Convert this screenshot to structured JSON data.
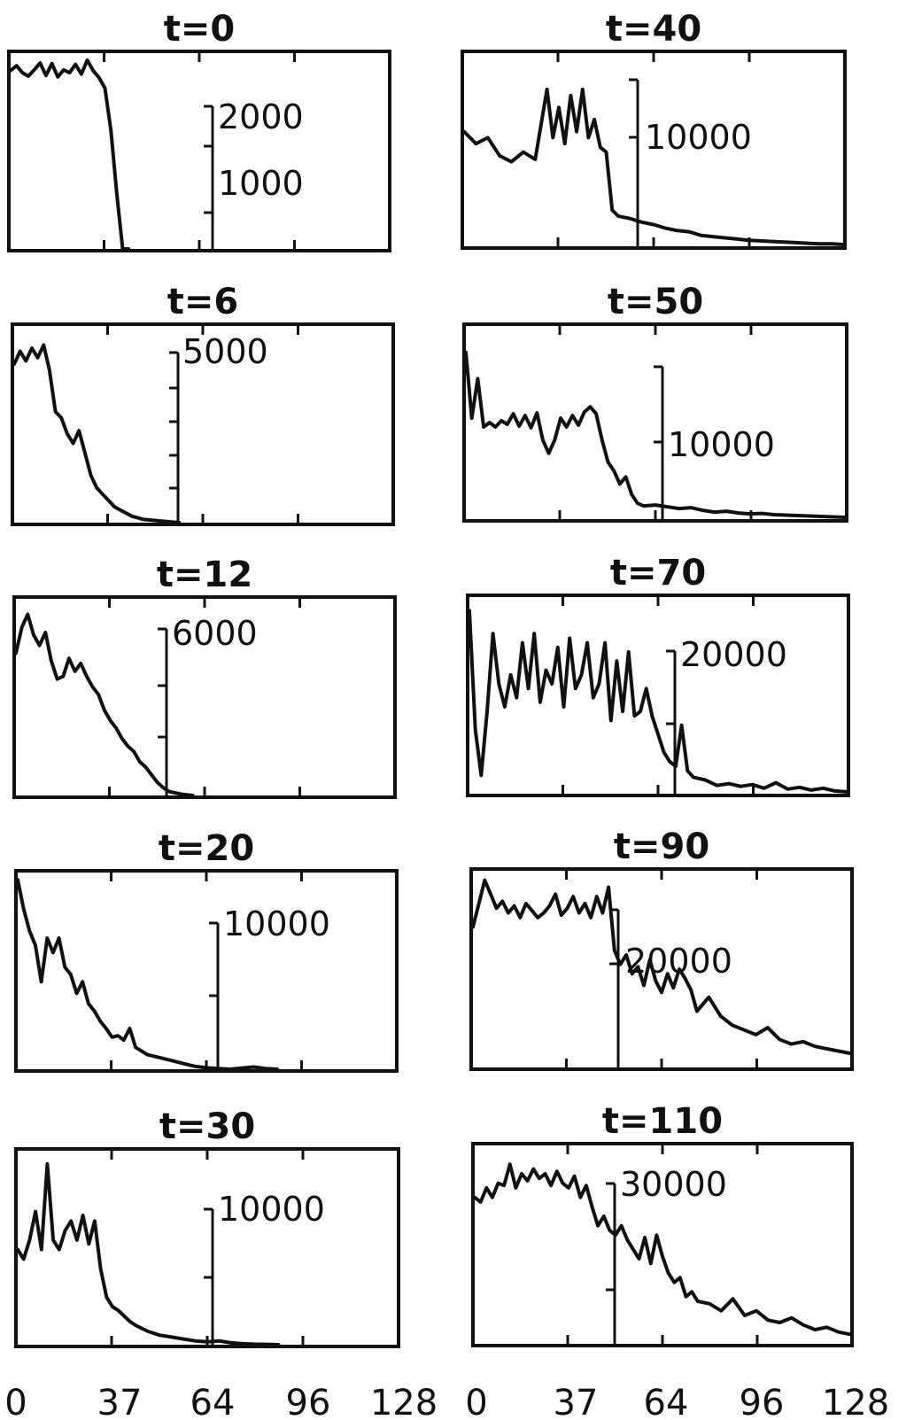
{
  "chart_data": [
    {
      "type": "line",
      "title": "t=0",
      "scale_label": "2000",
      "scale_label_2": "1000",
      "x": [
        0,
        2,
        4,
        6,
        8,
        10,
        12,
        14,
        16,
        18,
        20,
        22,
        24,
        26,
        28,
        30,
        32,
        34,
        36,
        38,
        40
      ],
      "y": [
        2550,
        2620,
        2520,
        2470,
        2560,
        2660,
        2480,
        2650,
        2460,
        2560,
        2520,
        2640,
        2500,
        2700,
        2550,
        2450,
        2300,
        1700,
        800,
        0,
        0
      ]
    },
    {
      "type": "line",
      "title": "t=40",
      "scale_label": "10000",
      "x": [
        0,
        4,
        8,
        12,
        16,
        20,
        24,
        28,
        30,
        32,
        34,
        36,
        38,
        40,
        42,
        44,
        46,
        48,
        50,
        52,
        56,
        60,
        64,
        68,
        72,
        76,
        80,
        84,
        88,
        92,
        96,
        100,
        104,
        108,
        112,
        116,
        120,
        124,
        128
      ],
      "y": [
        9500,
        8500,
        9000,
        7500,
        7000,
        7800,
        7200,
        13000,
        9000,
        11500,
        8500,
        12500,
        9500,
        13000,
        9000,
        10500,
        8200,
        7800,
        3000,
        2500,
        2300,
        2000,
        1800,
        1500,
        1300,
        1200,
        900,
        800,
        700,
        600,
        500,
        450,
        400,
        350,
        300,
        250,
        200,
        200,
        150
      ]
    },
    {
      "type": "line",
      "title": "t=6",
      "scale_label": "5000",
      "x": [
        0,
        2,
        4,
        6,
        8,
        10,
        12,
        14,
        16,
        18,
        20,
        22,
        24,
        26,
        28,
        30,
        32,
        34,
        36,
        40,
        44,
        50,
        56
      ],
      "y": [
        5000,
        5400,
        5100,
        5500,
        5200,
        5600,
        4800,
        3500,
        3300,
        2800,
        2500,
        2900,
        2200,
        1500,
        1100,
        900,
        700,
        500,
        400,
        200,
        100,
        50,
        0
      ]
    },
    {
      "type": "line",
      "title": "t=50",
      "scale_label": "10000",
      "x": [
        0,
        2,
        4,
        6,
        8,
        10,
        12,
        14,
        16,
        18,
        20,
        22,
        24,
        26,
        28,
        30,
        32,
        34,
        36,
        38,
        40,
        42,
        44,
        46,
        48,
        50,
        52,
        54,
        56,
        58,
        60,
        64,
        68,
        72,
        76,
        80,
        84,
        88,
        92,
        96,
        100,
        104,
        108,
        112,
        116,
        120,
        124,
        128
      ],
      "y": [
        19000,
        11500,
        16000,
        10500,
        11000,
        10500,
        11200,
        10800,
        12000,
        10600,
        11800,
        10400,
        12100,
        9000,
        7500,
        9000,
        11500,
        10500,
        11800,
        10700,
        12200,
        12800,
        12000,
        9000,
        6500,
        5500,
        4000,
        4800,
        2800,
        1800,
        1500,
        1600,
        1400,
        1200,
        1300,
        1000,
        800,
        900,
        700,
        600,
        650,
        500,
        450,
        400,
        350,
        300,
        250,
        200
      ]
    },
    {
      "type": "line",
      "title": "t=12",
      "scale_label": "6000",
      "x": [
        0,
        2,
        4,
        6,
        8,
        10,
        12,
        14,
        16,
        18,
        20,
        22,
        24,
        26,
        28,
        30,
        32,
        34,
        36,
        38,
        40,
        42,
        44,
        46,
        48,
        50,
        52,
        56,
        60
      ],
      "y": [
        5500,
        6500,
        7000,
        6200,
        5800,
        6300,
        5200,
        4500,
        4600,
        5300,
        4800,
        5100,
        4600,
        4200,
        3900,
        3300,
        2900,
        2600,
        2200,
        1900,
        1700,
        1300,
        1100,
        800,
        500,
        300,
        150,
        50,
        0
      ]
    },
    {
      "type": "line",
      "title": "t=70",
      "scale_label": "20000",
      "x": [
        0,
        2,
        4,
        6,
        8,
        10,
        12,
        14,
        16,
        18,
        20,
        22,
        24,
        26,
        28,
        30,
        32,
        34,
        36,
        38,
        40,
        42,
        44,
        46,
        48,
        50,
        52,
        54,
        56,
        58,
        60,
        62,
        64,
        66,
        68,
        70,
        72,
        74,
        76,
        80,
        84,
        88,
        92,
        96,
        100,
        104,
        108,
        112,
        116,
        120,
        124,
        128
      ],
      "y": [
        20000,
        7000,
        2000,
        9000,
        17500,
        12000,
        9500,
        13000,
        10500,
        16500,
        11500,
        17500,
        10000,
        13500,
        12000,
        16000,
        9500,
        17000,
        11500,
        13000,
        16500,
        10500,
        12000,
        16500,
        8000,
        14500,
        9000,
        15500,
        8500,
        9000,
        11500,
        8500,
        6500,
        4500,
        3500,
        3000,
        7500,
        2500,
        1800,
        1500,
        900,
        1100,
        800,
        1000,
        600,
        1200,
        500,
        700,
        400,
        600,
        300,
        200
      ]
    },
    {
      "type": "line",
      "title": "t=20",
      "scale_label": "10000",
      "x": [
        0,
        2,
        4,
        6,
        8,
        10,
        12,
        14,
        16,
        18,
        20,
        22,
        24,
        26,
        28,
        30,
        32,
        34,
        36,
        38,
        40,
        44,
        48,
        52,
        56,
        60,
        64,
        68,
        72,
        76,
        80,
        84,
        88
      ],
      "y": [
        13000,
        11000,
        9500,
        8500,
        6000,
        9000,
        8000,
        9000,
        7000,
        6500,
        5200,
        6000,
        4500,
        4000,
        3300,
        2800,
        2200,
        2300,
        2000,
        2800,
        1500,
        1000,
        800,
        600,
        400,
        200,
        100,
        50,
        0,
        80,
        150,
        50,
        0
      ]
    },
    {
      "type": "line",
      "title": "t=90",
      "scale_label": "20000",
      "x": [
        0,
        2,
        4,
        6,
        8,
        10,
        12,
        14,
        16,
        18,
        20,
        22,
        24,
        26,
        28,
        30,
        32,
        34,
        36,
        38,
        40,
        42,
        44,
        46,
        48,
        50,
        52,
        54,
        56,
        58,
        60,
        62,
        64,
        66,
        68,
        70,
        72,
        74,
        76,
        80,
        84,
        88,
        92,
        96,
        100,
        104,
        108,
        112,
        116,
        120,
        124,
        128
      ],
      "y": [
        30000,
        35000,
        40000,
        37000,
        34000,
        35500,
        33000,
        34500,
        32000,
        35000,
        33500,
        32000,
        33000,
        34500,
        37000,
        32500,
        34000,
        36500,
        33000,
        35000,
        32000,
        36500,
        33000,
        38500,
        25000,
        22000,
        24000,
        20000,
        21500,
        17500,
        23000,
        18500,
        16000,
        20000,
        17000,
        21000,
        19000,
        16500,
        12000,
        15000,
        11000,
        9000,
        8000,
        7000,
        8500,
        6000,
        5000,
        5500,
        4500,
        4000,
        3500,
        3000
      ]
    },
    {
      "type": "line",
      "title": "t=30",
      "scale_label": "10000",
      "x": [
        0,
        2,
        4,
        6,
        8,
        10,
        12,
        14,
        16,
        18,
        20,
        22,
        24,
        26,
        28,
        30,
        32,
        34,
        36,
        38,
        40,
        44,
        48,
        52,
        56,
        60,
        64,
        68,
        72,
        76,
        80,
        84,
        88
      ],
      "y": [
        5000,
        4500,
        5500,
        7000,
        5000,
        9500,
        5500,
        5000,
        6000,
        6500,
        5500,
        6800,
        5300,
        6500,
        4000,
        2500,
        2000,
        1800,
        1500,
        1200,
        1000,
        700,
        500,
        400,
        300,
        200,
        150,
        200,
        100,
        50,
        30,
        20,
        0
      ]
    },
    {
      "type": "line",
      "title": "t=110",
      "scale_label": "30000",
      "x": [
        0,
        2,
        4,
        6,
        8,
        10,
        12,
        14,
        16,
        18,
        20,
        22,
        24,
        26,
        28,
        30,
        32,
        34,
        36,
        38,
        40,
        42,
        44,
        46,
        48,
        50,
        52,
        54,
        56,
        58,
        60,
        62,
        64,
        66,
        68,
        70,
        72,
        74,
        76,
        80,
        84,
        88,
        92,
        96,
        100,
        104,
        108,
        112,
        116,
        120,
        124,
        128
      ],
      "y": [
        31000,
        30000,
        33000,
        31000,
        34000,
        33500,
        38000,
        33000,
        36000,
        34500,
        37000,
        35000,
        36000,
        33500,
        36500,
        34000,
        33000,
        35500,
        31000,
        33500,
        29000,
        25000,
        27000,
        24000,
        23000,
        25000,
        22000,
        20000,
        18000,
        22500,
        17000,
        23000,
        18500,
        15000,
        13000,
        14000,
        10000,
        11000,
        9000,
        8500,
        7000,
        9500,
        6000,
        7000,
        5000,
        4500,
        5500,
        4000,
        3000,
        3500,
        2500,
        2000
      ]
    }
  ],
  "xaxis": {
    "left": [
      "0",
      "37",
      "64",
      "96",
      "128"
    ],
    "right": [
      "0",
      "37",
      "64",
      "96",
      "128"
    ]
  }
}
